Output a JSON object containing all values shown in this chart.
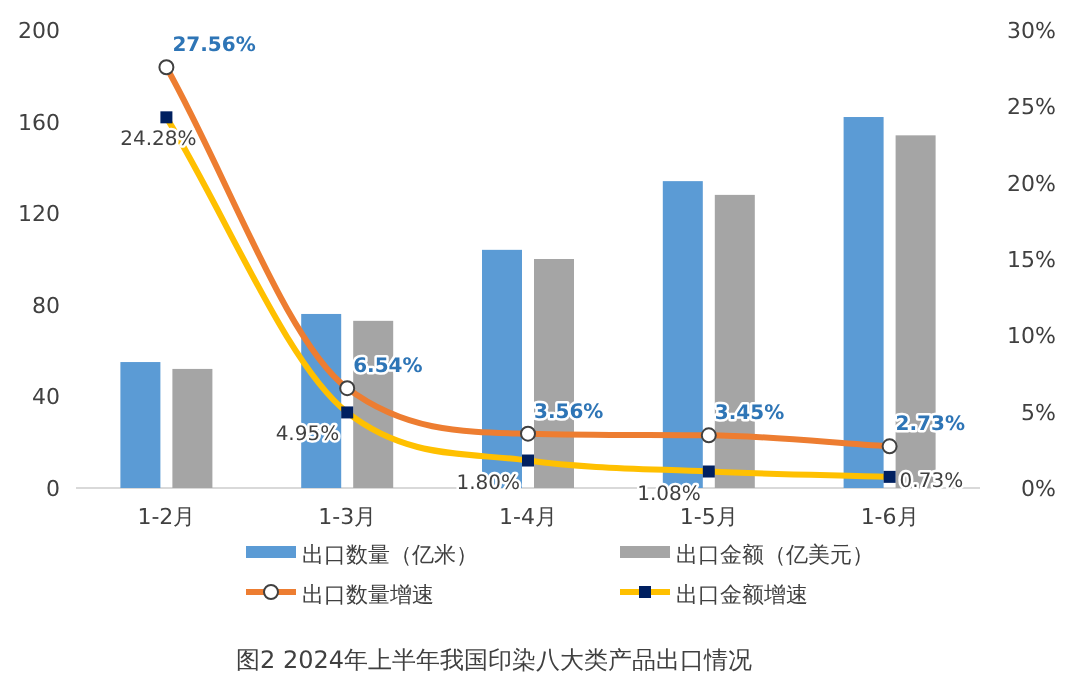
{
  "chart_data": {
    "type": "bar",
    "title": "图2 2024年上半年我国印染八大类产品出口情况",
    "categories": [
      "1-2月",
      "1-3月",
      "1-4月",
      "1-5月",
      "1-6月"
    ],
    "ylim": [
      0,
      200
    ],
    "yticks": [
      0,
      40,
      80,
      120,
      160,
      200
    ],
    "y2lim": [
      0,
      30
    ],
    "y2ticks": [
      {
        "value": 0,
        "label": "0%"
      },
      {
        "value": 5,
        "label": "5%"
      },
      {
        "value": 10,
        "label": "10%"
      },
      {
        "value": 15,
        "label": "15%"
      },
      {
        "value": 20,
        "label": "20%"
      },
      {
        "value": 25,
        "label": "25%"
      },
      {
        "value": 30,
        "label": "30%"
      }
    ],
    "grid": false,
    "legend": "bottom",
    "series": [
      {
        "name": "出口数量（亿米）",
        "color": "#5b9bd5",
        "values": [
          55,
          76,
          104,
          134,
          162
        ]
      },
      {
        "name": "出口金额（亿美元）",
        "color": "#a5a5a5",
        "values": [
          52,
          73,
          100,
          128,
          154
        ]
      },
      {
        "name": "出口数量增速",
        "type": "line",
        "axis": "y2",
        "color": "#ed7d31",
        "marker": "circle",
        "values": [
          27.56,
          6.54,
          3.56,
          3.45,
          2.73
        ],
        "value_labels": [
          "27.56%",
          "6.54%",
          "3.56%",
          "3.45%",
          "2.73%"
        ]
      },
      {
        "name": "出口金额增速",
        "type": "line",
        "axis": "y2",
        "color": "#ffc000",
        "marker": "square",
        "values": [
          24.28,
          4.95,
          1.8,
          1.08,
          0.73
        ],
        "value_labels": [
          "24.28%",
          "4.95%",
          "1.80%",
          "1.08%",
          "0.73%"
        ]
      }
    ]
  }
}
